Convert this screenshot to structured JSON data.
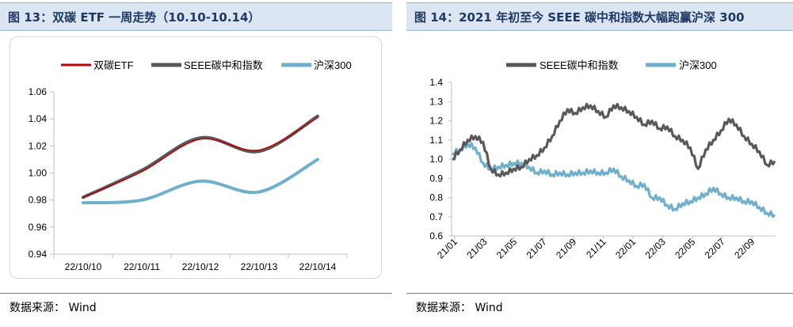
{
  "left_panel": {
    "title": "图 13：双碳 ETF 一周走势（10.10-10.14）",
    "source": "数据来源：  Wind"
  },
  "right_panel": {
    "title": "图 14：2021 年初至今 SEEE 碳中和指数大幅跑赢沪深 300",
    "source": "数据来源：  Wind"
  },
  "chart_data": [
    {
      "type": "line",
      "categories": [
        "22/10/10",
        "22/10/11",
        "22/10/12",
        "22/10/13",
        "22/10/14"
      ],
      "series": [
        {
          "name": "双碳ETF",
          "color": "#c00000",
          "values": [
            0.982,
            1.001,
            1.025,
            1.017,
            1.041
          ]
        },
        {
          "name": "SEEE碳中和指数",
          "color": "#595959",
          "values": [
            0.982,
            1.002,
            1.026,
            1.016,
            1.042
          ]
        },
        {
          "name": "沪深300",
          "color": "#6eb0cc",
          "values": [
            0.978,
            0.98,
            0.994,
            0.986,
            1.01
          ]
        }
      ],
      "yticks": [
        "0.94",
        "0.96",
        "0.98",
        "1.00",
        "1.02",
        "1.04",
        "1.06"
      ],
      "ylim": [
        0.94,
        1.06
      ],
      "legend_position": "top"
    },
    {
      "type": "line",
      "xticks": [
        "21/01",
        "21/03",
        "21/05",
        "21/07",
        "21/09",
        "21/11",
        "22/01",
        "22/03",
        "22/05",
        "22/07",
        "22/09"
      ],
      "series": [
        {
          "name": "SEEE碳中和指数",
          "color": "#595959",
          "values": [
            1.0,
            1.05,
            1.1,
            1.12,
            1.09,
            0.95,
            0.92,
            0.93,
            0.95,
            0.96,
            1.0,
            1.02,
            1.06,
            1.12,
            1.2,
            1.26,
            1.24,
            1.27,
            1.28,
            1.25,
            1.22,
            1.28,
            1.27,
            1.25,
            1.22,
            1.18,
            1.2,
            1.16,
            1.17,
            1.12,
            1.1,
            1.06,
            0.95,
            1.05,
            1.1,
            1.15,
            1.21,
            1.18,
            1.12,
            1.08,
            1.04,
            0.97,
            0.99
          ]
        },
        {
          "name": "沪深300",
          "color": "#6eb0cc",
          "values": [
            1.03,
            1.05,
            1.08,
            1.06,
            0.98,
            0.95,
            0.96,
            0.97,
            0.98,
            0.98,
            0.96,
            0.93,
            0.94,
            0.92,
            0.93,
            0.92,
            0.93,
            0.93,
            0.94,
            0.93,
            0.93,
            0.95,
            0.91,
            0.89,
            0.86,
            0.87,
            0.8,
            0.8,
            0.76,
            0.74,
            0.77,
            0.78,
            0.8,
            0.82,
            0.85,
            0.82,
            0.8,
            0.8,
            0.78,
            0.78,
            0.75,
            0.72,
            0.71
          ]
        }
      ],
      "yticks": [
        "0.6",
        "0.7",
        "0.8",
        "0.9",
        "1.0",
        "1.1",
        "1.2",
        "1.3",
        "1.4"
      ],
      "ylim": [
        0.6,
        1.4
      ],
      "legend_position": "top"
    }
  ]
}
